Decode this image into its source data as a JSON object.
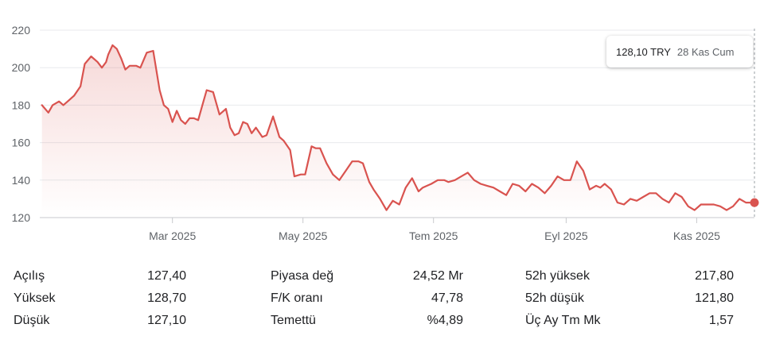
{
  "tooltip": {
    "price": "128,10 TRY",
    "date": "28 Kas Cum"
  },
  "colors": {
    "line": "#d9534f",
    "grid": "#e8eaed",
    "text": "#5f6368"
  },
  "stats": [
    [
      {
        "label": "Açılış",
        "value": "127,40"
      },
      {
        "label": "Piyasa değ",
        "value": "24,52 Mr"
      },
      {
        "label": "52h yüksek",
        "value": "217,80"
      }
    ],
    [
      {
        "label": "Yüksek",
        "value": "128,70"
      },
      {
        "label": "F/K oranı",
        "value": "47,78"
      },
      {
        "label": "52h düşük",
        "value": "121,80"
      }
    ],
    [
      {
        "label": "Düşük",
        "value": "127,10"
      },
      {
        "label": "Temettü",
        "value": "%4,89"
      },
      {
        "label": "Üç Ay Tm Mk",
        "value": "1,57"
      }
    ]
  ],
  "chart_data": {
    "type": "area",
    "title": "",
    "xlabel": "",
    "ylabel": "",
    "ylim": [
      120,
      220
    ],
    "yticks": [
      120,
      140,
      160,
      180,
      200,
      220
    ],
    "yticklabels": [
      "120",
      "140",
      "160",
      "180",
      "200",
      "220"
    ],
    "xlim": [
      "2024-12-29",
      "2025-11-28"
    ],
    "xticks": [
      {
        "date": "2025-03-01",
        "label": "Mar 2025"
      },
      {
        "date": "2025-05-01",
        "label": "May 2025"
      },
      {
        "date": "2025-07-01",
        "label": "Tem 2025"
      },
      {
        "date": "2025-09-01",
        "label": "Eyl 2025"
      },
      {
        "date": "2025-11-01",
        "label": "Kas 2025"
      }
    ],
    "grid": true,
    "series": [
      {
        "x": [
          "2024-12-30",
          "2025-01-02",
          "2025-01-04",
          "2025-01-07",
          "2025-01-09",
          "2025-01-11",
          "2025-01-14",
          "2025-01-17",
          "2025-01-19",
          "2025-01-22",
          "2025-01-25",
          "2025-01-27",
          "2025-01-29",
          "2025-01-30",
          "2025-02-01",
          "2025-02-03",
          "2025-02-05",
          "2025-02-07",
          "2025-02-09",
          "2025-02-12",
          "2025-02-14",
          "2025-02-17",
          "2025-02-20",
          "2025-02-23",
          "2025-02-25",
          "2025-02-27",
          "2025-03-01",
          "2025-03-03",
          "2025-03-05",
          "2025-03-07",
          "2025-03-09",
          "2025-03-11",
          "2025-03-13",
          "2025-03-15",
          "2025-03-17",
          "2025-03-20",
          "2025-03-23",
          "2025-03-26",
          "2025-03-28",
          "2025-03-30",
          "2025-04-01",
          "2025-04-03",
          "2025-04-05",
          "2025-04-07",
          "2025-04-09",
          "2025-04-12",
          "2025-04-14",
          "2025-04-17",
          "2025-04-20",
          "2025-04-22",
          "2025-04-25",
          "2025-04-27",
          "2025-04-30",
          "2025-05-02",
          "2025-05-05",
          "2025-05-07",
          "2025-05-09",
          "2025-05-12",
          "2025-05-15",
          "2025-05-18",
          "2025-05-21",
          "2025-05-24",
          "2025-05-27",
          "2025-05-29",
          "2025-06-01",
          "2025-06-03",
          "2025-06-06",
          "2025-06-09",
          "2025-06-12",
          "2025-06-15",
          "2025-06-18",
          "2025-06-21",
          "2025-06-24",
          "2025-06-26",
          "2025-06-28",
          "2025-06-30",
          "2025-07-03",
          "2025-07-06",
          "2025-07-08",
          "2025-07-11",
          "2025-07-14",
          "2025-07-17",
          "2025-07-20",
          "2025-07-23",
          "2025-07-26",
          "2025-07-29",
          "2025-08-01",
          "2025-08-04",
          "2025-08-07",
          "2025-08-10",
          "2025-08-13",
          "2025-08-16",
          "2025-08-19",
          "2025-08-22",
          "2025-08-25",
          "2025-08-28",
          "2025-08-31",
          "2025-09-03",
          "2025-09-06",
          "2025-09-09",
          "2025-09-12",
          "2025-09-15",
          "2025-09-17",
          "2025-09-19",
          "2025-09-22",
          "2025-09-25",
          "2025-09-28",
          "2025-10-01",
          "2025-10-04",
          "2025-10-07",
          "2025-10-10",
          "2025-10-13",
          "2025-10-16",
          "2025-10-19",
          "2025-10-22",
          "2025-10-25",
          "2025-10-28",
          "2025-10-31",
          "2025-11-03",
          "2025-11-06",
          "2025-11-09",
          "2025-11-12",
          "2025-11-15",
          "2025-11-18",
          "2025-11-21",
          "2025-11-24",
          "2025-11-26",
          "2025-11-28"
        ],
        "y": [
          180,
          176,
          180,
          182,
          180,
          182,
          185,
          190,
          202,
          206,
          203,
          200,
          203,
          207,
          212,
          210,
          205,
          199,
          201,
          201,
          200,
          208,
          209,
          188,
          180,
          178,
          171,
          177,
          172,
          170,
          173,
          173,
          172,
          180,
          188,
          187,
          175,
          178,
          168,
          164,
          165,
          171,
          170,
          165,
          168,
          163,
          164,
          174,
          163,
          161,
          156,
          142,
          143,
          143,
          158,
          157,
          157,
          149,
          143,
          140,
          145,
          150,
          150,
          149,
          139,
          135,
          130,
          124,
          129,
          127,
          136,
          141,
          134,
          136,
          137,
          138,
          140,
          140,
          139,
          140,
          142,
          144,
          140,
          138,
          137,
          136,
          134,
          132,
          138,
          137,
          134,
          138,
          136,
          133,
          137,
          142,
          140,
          140,
          150,
          145,
          135,
          137,
          136,
          138,
          135,
          128,
          127,
          130,
          129,
          131,
          133,
          133,
          130,
          128,
          133,
          131,
          126,
          124,
          127,
          127,
          127,
          126,
          124,
          126,
          130,
          128,
          128,
          128
        ]
      }
    ]
  }
}
